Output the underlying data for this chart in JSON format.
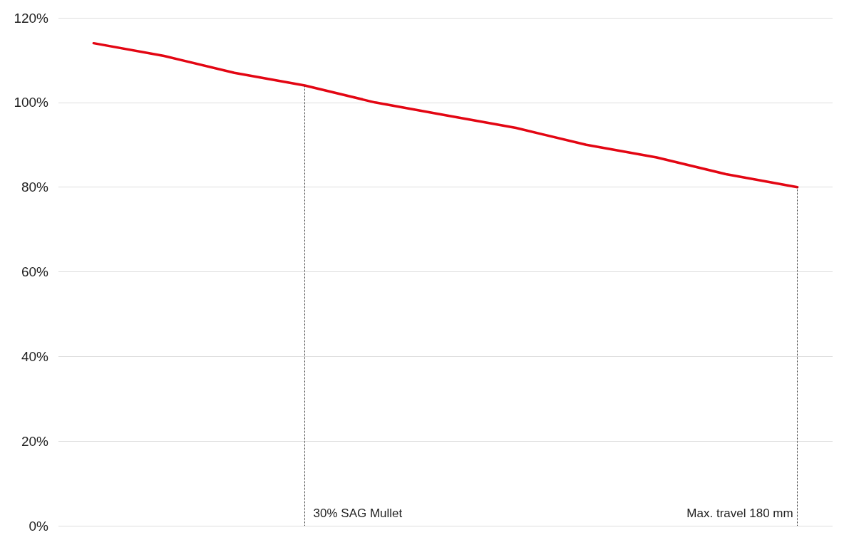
{
  "chart_data": {
    "type": "line",
    "categories": [
      null,
      null,
      null,
      null,
      null,
      null,
      null,
      null,
      null,
      null,
      null
    ],
    "values": [
      114,
      111,
      107,
      104,
      100,
      97,
      94,
      90,
      87,
      83,
      80
    ],
    "color": "#e30613",
    "ylim": [
      0,
      120
    ],
    "yticks": [
      {
        "value": 0,
        "label": "0%"
      },
      {
        "value": 20,
        "label": "20%"
      },
      {
        "value": 40,
        "label": "40%"
      },
      {
        "value": 60,
        "label": "60%"
      },
      {
        "value": 80,
        "label": "80%"
      },
      {
        "value": 100,
        "label": "100%"
      },
      {
        "value": 120,
        "label": "120%"
      }
    ],
    "grid": "y",
    "marker": "none",
    "line_style": "solid",
    "annotations": [
      "30% SAG Mullet",
      "Max. travel 180 mm"
    ]
  }
}
